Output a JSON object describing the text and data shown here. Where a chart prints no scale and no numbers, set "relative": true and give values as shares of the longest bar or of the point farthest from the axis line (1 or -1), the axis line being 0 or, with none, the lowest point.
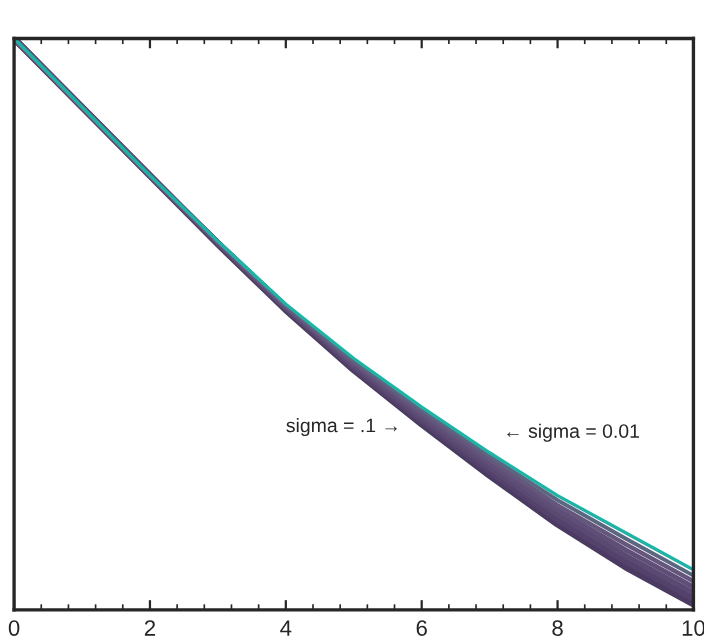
{
  "chart_data": {
    "type": "line",
    "relative": true,
    "x": [
      0,
      1,
      2,
      3,
      4,
      5,
      6,
      7,
      8,
      9,
      10
    ],
    "series": [
      {
        "color": "#4b3b63",
        "values": [
          1,
          0.88,
          0.76,
          0.64,
          0.525,
          0.42,
          0.325,
          0.235,
          0.15,
          0.075,
          0.01
        ]
      },
      {
        "color": "#54426c",
        "values": [
          1,
          0.88,
          0.76,
          0.641,
          0.527,
          0.423,
          0.33,
          0.242,
          0.158,
          0.085,
          0.02
        ]
      },
      {
        "color": "#5a4a72",
        "values": [
          1,
          0.88,
          0.76,
          0.642,
          0.529,
          0.427,
          0.335,
          0.249,
          0.167,
          0.095,
          0.03
        ]
      },
      {
        "color": "#5f4f78",
        "values": [
          1,
          0.88,
          0.76,
          0.643,
          0.53,
          0.43,
          0.34,
          0.256,
          0.175,
          0.105,
          0.04
        ]
      },
      {
        "color": "#65577c",
        "values": [
          1,
          0.88,
          0.76,
          0.644,
          0.531,
          0.433,
          0.345,
          0.263,
          0.183,
          0.115,
          0.05
        ]
      },
      {
        "color": "#5b6680",
        "values": [
          1,
          0.88,
          0.76,
          0.645,
          0.533,
          0.436,
          0.35,
          0.269,
          0.192,
          0.125,
          0.06
        ]
      },
      {
        "color": "#20b2a4",
        "values": [
          1,
          0.88,
          0.76,
          0.645,
          0.535,
          0.44,
          0.355,
          0.275,
          0.2,
          0.135,
          0.07
        ]
      }
    ],
    "xlim": [
      0,
      10
    ],
    "xticks": [
      0,
      2,
      4,
      6,
      8,
      10
    ],
    "tick_labels": "x",
    "annotations": [
      "sigma = .1 →",
      "← sigma = 0.01"
    ]
  }
}
